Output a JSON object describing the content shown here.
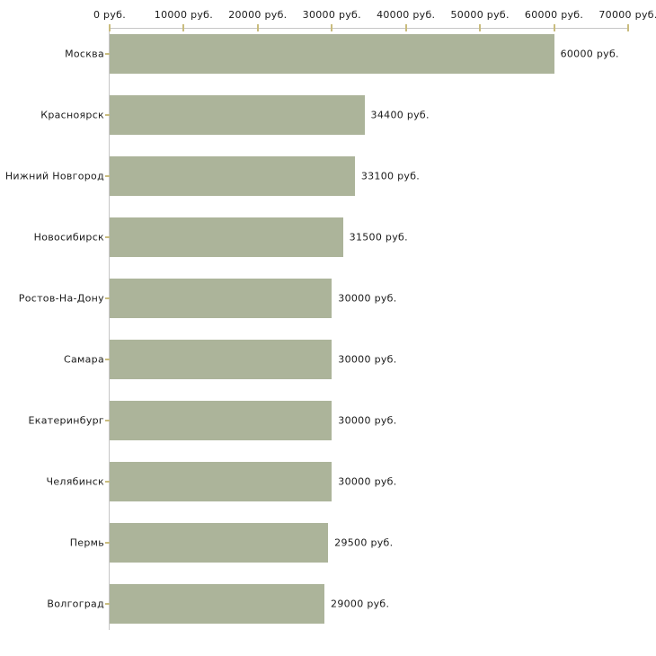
{
  "chart_data": {
    "type": "bar",
    "orientation": "horizontal",
    "title": "",
    "xlabel": "",
    "ylabel": "",
    "grid": false,
    "legend": false,
    "categories": [
      "Москва",
      "Красноярск",
      "Нижний Новгород",
      "Новосибирск",
      "Ростов-На-Дону",
      "Самара",
      "Екатеринбург",
      "Челябинск",
      "Пермь",
      "Волгоград"
    ],
    "values": [
      60000,
      34400,
      33100,
      31500,
      30000,
      30000,
      30000,
      30000,
      29500,
      29000
    ],
    "value_labels": [
      "60000 руб.",
      "34400 руб.",
      "33100 руб.",
      "31500 руб.",
      "30000 руб.",
      "30000 руб.",
      "30000 руб.",
      "30000 руб.",
      "29500 руб.",
      "29000 руб."
    ],
    "x_axis": {
      "position": "top",
      "min": 0,
      "max": 70000,
      "tick_values": [
        0,
        10000,
        20000,
        30000,
        40000,
        50000,
        60000,
        70000
      ],
      "tick_labels": [
        "0 руб.",
        "10000 руб.",
        "20000 руб.",
        "30000 руб.",
        "40000 руб.",
        "50000 руб.",
        "60000 руб.",
        "70000 руб."
      ]
    },
    "colors": {
      "bar": "#acb49a",
      "axis_line": "#c6c6c6",
      "tick_mark": "#c9bc7e",
      "label_text": "#1a1a1a",
      "background": "#ffffff"
    }
  }
}
